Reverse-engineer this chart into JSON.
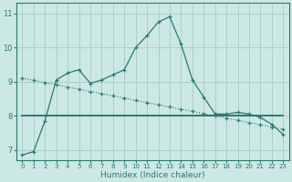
{
  "xlabel": "Humidex (Indice chaleur)",
  "xlim": [
    -0.5,
    23.5
  ],
  "ylim": [
    6.7,
    11.3
  ],
  "yticks": [
    7,
    8,
    9,
    10,
    11
  ],
  "xticks": [
    0,
    1,
    2,
    3,
    4,
    5,
    6,
    7,
    8,
    9,
    10,
    11,
    12,
    13,
    14,
    15,
    16,
    17,
    18,
    19,
    20,
    21,
    22,
    23
  ],
  "bg_color": "#cce8e4",
  "grid_color": "#aacfcb",
  "line_color": "#2a7a6f",
  "line1_x": [
    0,
    1,
    2,
    3,
    4,
    5,
    6,
    7,
    8,
    9,
    10,
    11,
    12,
    13,
    14,
    15,
    16,
    17,
    18,
    19,
    20,
    21,
    22,
    23
  ],
  "line1_y": [
    6.85,
    6.95,
    7.85,
    9.05,
    9.25,
    9.35,
    8.95,
    9.05,
    9.2,
    9.35,
    10.0,
    10.35,
    10.75,
    10.9,
    10.1,
    9.05,
    8.55,
    8.05,
    8.05,
    8.1,
    8.05,
    7.95,
    7.75,
    7.45
  ],
  "line2_x": [
    0,
    1,
    2,
    3,
    4,
    5,
    6,
    7,
    8,
    9,
    10,
    11,
    12,
    13,
    14,
    15,
    16,
    17,
    18,
    19,
    20,
    21,
    22,
    23
  ],
  "line2_y": [
    9.1,
    9.04,
    8.97,
    8.91,
    8.84,
    8.78,
    8.71,
    8.65,
    8.58,
    8.52,
    8.45,
    8.39,
    8.32,
    8.26,
    8.19,
    8.13,
    8.06,
    8.0,
    7.93,
    7.87,
    7.8,
    7.74,
    7.67,
    7.61
  ],
  "line3_x": [
    0,
    23
  ],
  "line3_y": [
    8.0,
    8.0
  ]
}
